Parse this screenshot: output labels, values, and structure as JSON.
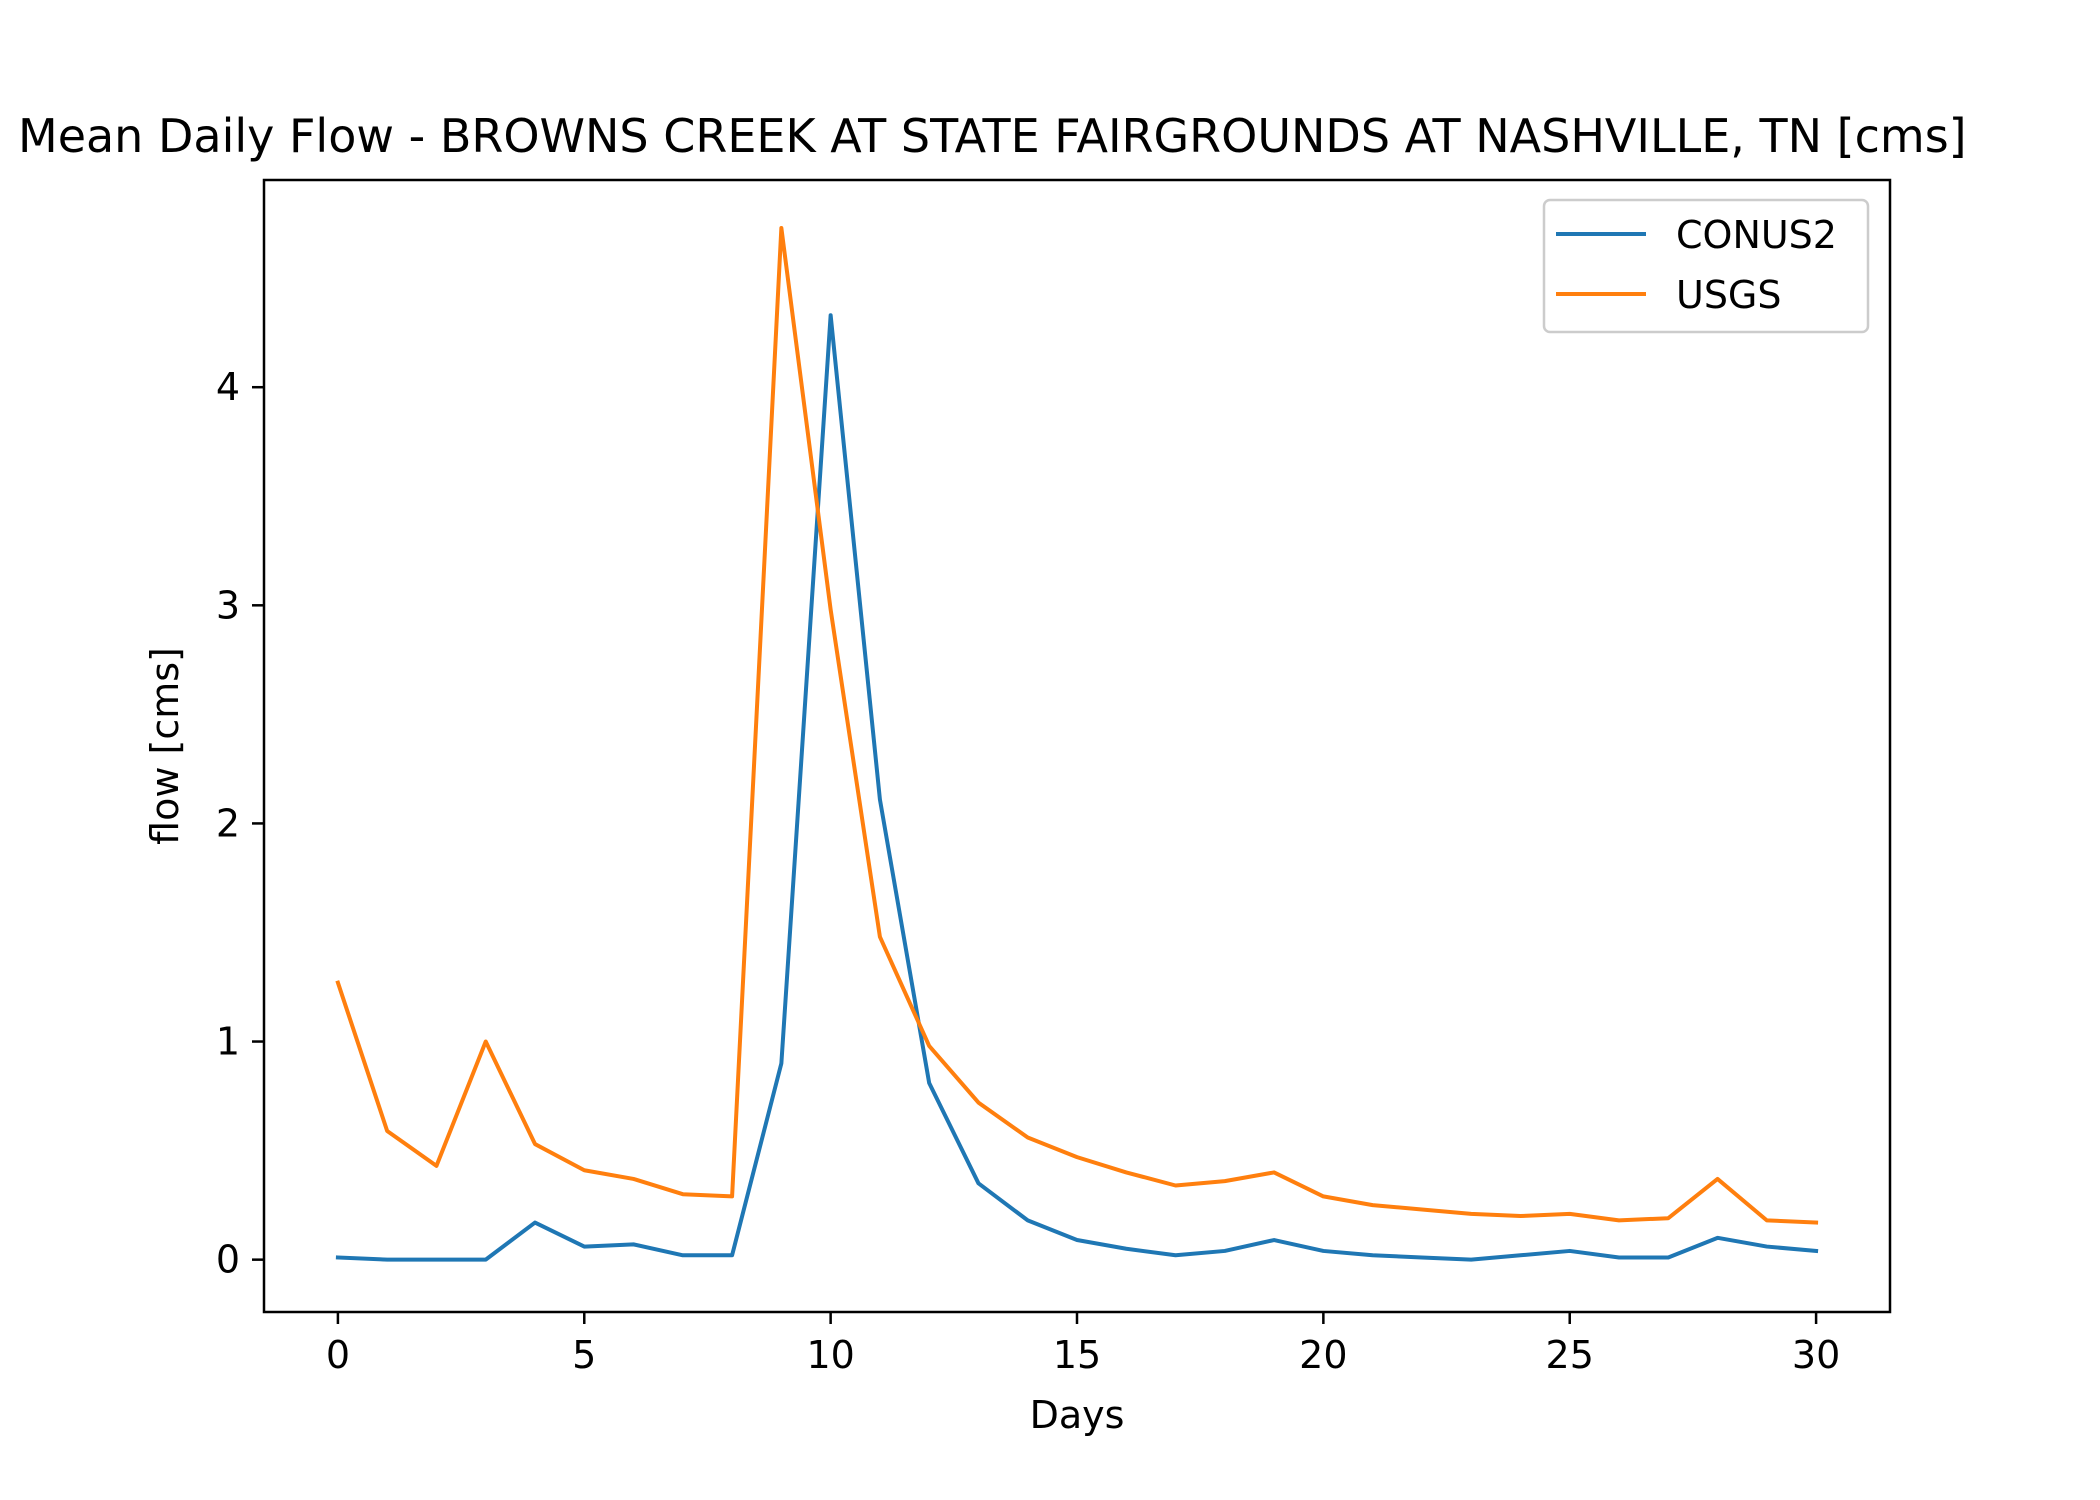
{
  "chart_data": {
    "type": "line",
    "title": "Mean Daily Flow - BROWNS CREEK AT STATE FAIRGROUNDS AT NASHVILLE, TN [cms]",
    "xlabel": "Days",
    "ylabel": "flow [cms]",
    "xlim": [
      -1.5,
      31.5
    ],
    "ylim": [
      -0.24,
      4.95
    ],
    "xticks": [
      0,
      5,
      10,
      15,
      20,
      25,
      30
    ],
    "yticks": [
      0,
      1,
      2,
      3,
      4
    ],
    "grid": false,
    "legend_position": "top-right",
    "x": [
      0,
      1,
      2,
      3,
      4,
      5,
      6,
      7,
      8,
      9,
      10,
      11,
      12,
      13,
      14,
      15,
      16,
      17,
      18,
      19,
      20,
      21,
      22,
      23,
      24,
      25,
      26,
      27,
      28,
      29,
      30
    ],
    "series": [
      {
        "name": "CONUS2",
        "color": "#1f77b4",
        "values": [
          0.01,
          0.0,
          0.0,
          0.0,
          0.17,
          0.06,
          0.07,
          0.02,
          0.02,
          0.9,
          4.33,
          2.11,
          0.81,
          0.35,
          0.18,
          0.09,
          0.05,
          0.02,
          0.04,
          0.09,
          0.04,
          0.02,
          0.01,
          0.0,
          0.02,
          0.04,
          0.01,
          0.01,
          0.1,
          0.06,
          0.04
        ]
      },
      {
        "name": "USGS",
        "color": "#ff7f0e",
        "values": [
          1.27,
          0.59,
          0.43,
          1.0,
          0.53,
          0.41,
          0.37,
          0.3,
          0.29,
          4.73,
          2.98,
          1.48,
          0.98,
          0.72,
          0.56,
          0.47,
          0.4,
          0.34,
          0.36,
          0.4,
          0.29,
          0.25,
          0.23,
          0.21,
          0.2,
          0.21,
          0.18,
          0.19,
          0.37,
          0.18,
          0.17
        ]
      }
    ]
  }
}
